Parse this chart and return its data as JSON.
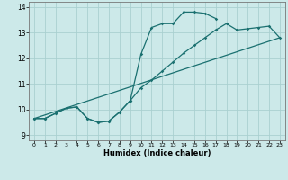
{
  "xlabel": "Humidex (Indice chaleur)",
  "xlim": [
    -0.5,
    23.5
  ],
  "ylim": [
    8.8,
    14.2
  ],
  "xticks": [
    0,
    1,
    2,
    3,
    4,
    5,
    6,
    7,
    8,
    9,
    10,
    11,
    12,
    13,
    14,
    15,
    16,
    17,
    18,
    19,
    20,
    21,
    22,
    23
  ],
  "yticks": [
    9,
    10,
    11,
    12,
    13,
    14
  ],
  "bg_color": "#cce9e9",
  "grid_color": "#aad0d0",
  "line_color": "#1a7070",
  "line_width": 0.9,
  "marker": "D",
  "marker_size": 1.8,
  "curve1_x": [
    0,
    1,
    2,
    3,
    4,
    5,
    6,
    7,
    8,
    9,
    10,
    11,
    12,
    13,
    14,
    15,
    16,
    17
  ],
  "curve1_y": [
    9.65,
    9.65,
    9.85,
    10.05,
    10.1,
    9.65,
    9.5,
    9.55,
    9.9,
    10.35,
    12.15,
    13.2,
    13.35,
    13.35,
    13.8,
    13.8,
    13.75,
    13.55
  ],
  "curve2_x": [
    0,
    1,
    2,
    3,
    4,
    5,
    6,
    7,
    8,
    9,
    10,
    11,
    12,
    13,
    14,
    15,
    16,
    17,
    18,
    19,
    20,
    21,
    22,
    23
  ],
  "curve2_y": [
    9.65,
    9.65,
    9.85,
    10.05,
    10.1,
    9.65,
    9.5,
    9.55,
    9.9,
    10.35,
    10.85,
    11.15,
    11.5,
    11.85,
    12.2,
    12.5,
    12.8,
    13.1,
    13.35,
    13.1,
    13.15,
    13.2,
    13.25,
    12.8
  ],
  "curve3_x": [
    0,
    23
  ],
  "curve3_y": [
    9.65,
    12.8
  ]
}
